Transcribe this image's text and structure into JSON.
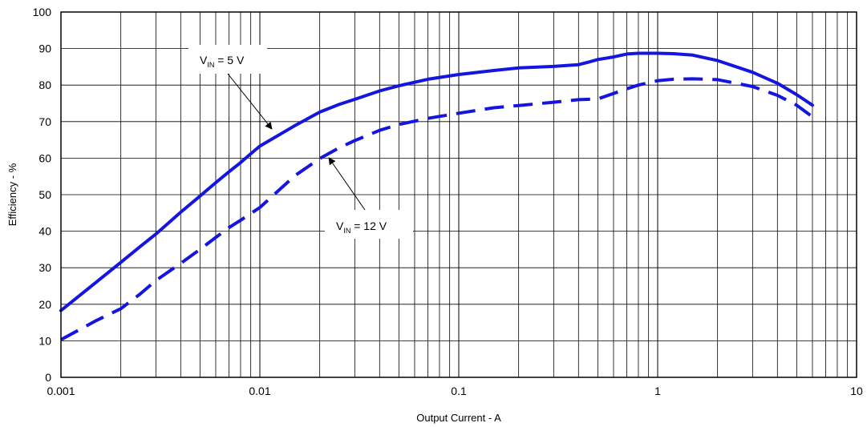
{
  "chart_data": {
    "type": "line",
    "title": "",
    "xlabel": "Output Current - A",
    "ylabel": "Efficiency - %",
    "x_scale": "log",
    "xlim": [
      0.001,
      10
    ],
    "ylim": [
      0,
      100
    ],
    "x_ticks": [
      "0.001",
      "0.01",
      "0.1",
      "1",
      "10"
    ],
    "y_ticks": [
      "0",
      "10",
      "20",
      "30",
      "40",
      "50",
      "60",
      "70",
      "80",
      "90",
      "100"
    ],
    "grid": true,
    "series": [
      {
        "name": "VIN = 5 V",
        "style": "solid",
        "color": "#1515e0",
        "x": [
          0.001,
          0.0015,
          0.002,
          0.0025,
          0.003,
          0.004,
          0.005,
          0.006,
          0.007,
          0.008,
          0.009,
          0.01,
          0.015,
          0.02,
          0.025,
          0.03,
          0.04,
          0.05,
          0.07,
          0.1,
          0.15,
          0.2,
          0.3,
          0.4,
          0.45,
          0.5,
          0.6,
          0.7,
          0.8,
          1.0,
          1.2,
          1.5,
          2.0,
          3.0,
          4.0,
          5.0,
          6.0
        ],
        "y": [
          18.3,
          26.0,
          31.5,
          35.8,
          39.2,
          45.2,
          49.6,
          53.3,
          56.3,
          58.8,
          61.2,
          63.3,
          68.9,
          72.6,
          74.7,
          76.1,
          78.4,
          79.8,
          81.6,
          82.9,
          84.0,
          84.7,
          85.1,
          85.6,
          86.3,
          87.0,
          87.7,
          88.5,
          88.7,
          88.7,
          88.6,
          88.2,
          86.7,
          83.5,
          80.5,
          77.4,
          74.5
        ]
      },
      {
        "name": "VIN = 12 V",
        "style": "dashed",
        "color": "#1515e0",
        "x": [
          0.001,
          0.0015,
          0.002,
          0.0025,
          0.003,
          0.004,
          0.005,
          0.006,
          0.007,
          0.008,
          0.01,
          0.015,
          0.02,
          0.025,
          0.03,
          0.04,
          0.05,
          0.07,
          0.1,
          0.15,
          0.2,
          0.3,
          0.4,
          0.5,
          0.6,
          0.7,
          0.8,
          1.0,
          1.2,
          1.5,
          2.0,
          3.0,
          4.0,
          5.0,
          6.0
        ],
        "y": [
          10.3,
          15.5,
          18.8,
          22.8,
          26.5,
          31.2,
          35.0,
          38.3,
          41.0,
          43.0,
          46.5,
          55.2,
          59.9,
          62.8,
          64.8,
          67.6,
          69.2,
          70.9,
          72.3,
          73.8,
          74.4,
          75.3,
          76.0,
          76.2,
          77.7,
          79.0,
          80.0,
          81.2,
          81.6,
          81.7,
          81.5,
          79.6,
          77.2,
          74.5,
          71.3
        ]
      }
    ],
    "annotations": [
      {
        "label_main": "V",
        "label_sub": "IN",
        "label_rest": " = 5 V",
        "points_to_series": "VIN = 5 V"
      },
      {
        "label_main": "V",
        "label_sub": "IN",
        "label_rest": " = 12 V",
        "points_to_series": "VIN = 12 V"
      }
    ]
  }
}
